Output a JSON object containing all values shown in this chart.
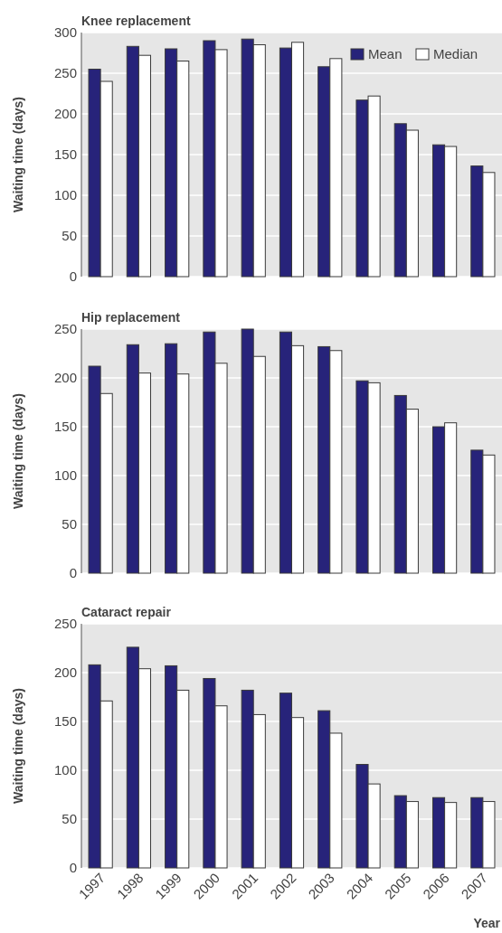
{
  "chart_data": [
    {
      "type": "bar",
      "title": "Knee replacement",
      "ylabel": "Waiting time (days)",
      "categories": [
        null,
        null,
        null,
        null,
        null,
        null,
        null,
        null,
        null,
        null,
        null
      ],
      "series": [
        {
          "name": "Mean",
          "color": "#27237a",
          "values": [
            255,
            283,
            280,
            290,
            292,
            281,
            258,
            217,
            188,
            162,
            136
          ]
        },
        {
          "name": "Median",
          "color": "#ffffff",
          "values": [
            240,
            272,
            265,
            279,
            285,
            288,
            268,
            222,
            180,
            160,
            128
          ]
        }
      ],
      "ylim": [
        0,
        300
      ],
      "yticks": [
        0,
        50,
        100,
        150,
        200,
        250,
        300
      ],
      "grid": "y",
      "legend": "top right",
      "tick_labels": "y"
    },
    {
      "type": "bar",
      "title": "Hip replacement",
      "ylabel": "Waiting time (days)",
      "categories": [
        null,
        null,
        null,
        null,
        null,
        null,
        null,
        null,
        null,
        null,
        null
      ],
      "series": [
        {
          "color": "#27237a",
          "values": [
            212,
            234,
            235,
            247,
            250,
            247,
            232,
            197,
            182,
            150,
            126
          ]
        },
        {
          "color": "#ffffff",
          "values": [
            184,
            205,
            204,
            215,
            222,
            233,
            228,
            195,
            168,
            154,
            121
          ]
        }
      ],
      "ylim": [
        0,
        250
      ],
      "yticks": [
        0,
        50,
        100,
        150,
        200,
        250
      ],
      "grid": "y",
      "tick_labels": "y"
    },
    {
      "type": "bar",
      "title": "Cataract repair",
      "ylabel": "Waiting time (days)",
      "xlabel": "Year",
      "categories": [
        "1997",
        "1998",
        "1999",
        "2000",
        "2001",
        "2002",
        "2003",
        "2004",
        "2005",
        "2006",
        "2007"
      ],
      "series": [
        {
          "color": "#27237a",
          "values": [
            208,
            226,
            207,
            194,
            182,
            179,
            161,
            106,
            74,
            72,
            72
          ]
        },
        {
          "color": "#ffffff",
          "values": [
            171,
            204,
            182,
            166,
            157,
            154,
            138,
            86,
            68,
            67,
            68
          ]
        }
      ],
      "ylim": [
        0,
        250
      ],
      "yticks": [
        0,
        50,
        100,
        150,
        200,
        250
      ],
      "grid": "y"
    }
  ]
}
